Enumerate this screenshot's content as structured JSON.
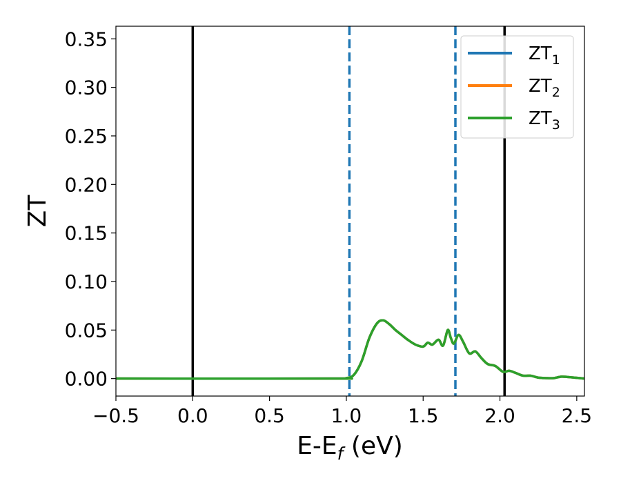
{
  "chart_data": {
    "type": "line",
    "xlabel": {
      "main": "E-E",
      "sub": "f",
      "unit": " (eV)"
    },
    "ylabel": "ZT",
    "xlim": [
      -0.5,
      2.55
    ],
    "ylim": [
      -0.018,
      0.363
    ],
    "x_ticks": [
      -0.5,
      0.0,
      0.5,
      1.0,
      1.5,
      2.0,
      2.5
    ],
    "x_tick_labels": [
      "−0.5",
      "0.0",
      "0.5",
      "1.0",
      "1.5",
      "2.0",
      "2.5"
    ],
    "y_ticks": [
      0.0,
      0.05,
      0.1,
      0.15,
      0.2,
      0.25,
      0.3,
      0.35
    ],
    "y_tick_labels": [
      "0.00",
      "0.05",
      "0.10",
      "0.15",
      "0.20",
      "0.25",
      "0.30",
      "0.35"
    ],
    "grid": false,
    "legend_position": "top-right",
    "vertical_lines": [
      {
        "x": 0.0,
        "color": "#000000",
        "style": "solid"
      },
      {
        "x": 2.03,
        "color": "#000000",
        "style": "solid"
      },
      {
        "x": 1.02,
        "color": "#1f77b4",
        "style": "dashed"
      },
      {
        "x": 1.71,
        "color": "#1f77b4",
        "style": "dashed"
      }
    ],
    "series": [
      {
        "name": "ZT",
        "name_sub": "1",
        "color": "#1f77b4",
        "x": [
          -0.5,
          0.9,
          1.0,
          1.05,
          1.1,
          1.15,
          1.2,
          1.24,
          1.28,
          1.32,
          1.36,
          1.4,
          1.45,
          1.5,
          1.53,
          1.56,
          1.6,
          1.63,
          1.66,
          1.68,
          1.7,
          1.73,
          1.76,
          1.8,
          1.84,
          1.88,
          1.92,
          1.97,
          2.02,
          2.06,
          2.1,
          2.15,
          2.2,
          2.25,
          2.3,
          2.35,
          2.4,
          2.45,
          2.55
        ],
        "y": [
          0.0,
          0.0,
          0.0005,
          0.004,
          0.018,
          0.042,
          0.057,
          0.06,
          0.056,
          0.05,
          0.045,
          0.04,
          0.035,
          0.033,
          0.037,
          0.035,
          0.04,
          0.034,
          0.05,
          0.042,
          0.036,
          0.045,
          0.038,
          0.026,
          0.028,
          0.021,
          0.015,
          0.013,
          0.007,
          0.008,
          0.006,
          0.003,
          0.003,
          0.001,
          0.0005,
          0.0005,
          0.002,
          0.0015,
          0.0
        ]
      },
      {
        "name": "ZT",
        "name_sub": "2",
        "color": "#ff7f0e",
        "x": [
          -0.5,
          0.9,
          1.0,
          1.05,
          1.1,
          1.15,
          1.2,
          1.24,
          1.28,
          1.32,
          1.36,
          1.4,
          1.45,
          1.5,
          1.53,
          1.56,
          1.6,
          1.63,
          1.66,
          1.68,
          1.7,
          1.73,
          1.76,
          1.8,
          1.84,
          1.88,
          1.92,
          1.97,
          2.02,
          2.06,
          2.1,
          2.15,
          2.2,
          2.25,
          2.3,
          2.35,
          2.4,
          2.45,
          2.55
        ],
        "y": [
          0.0,
          0.0,
          0.0005,
          0.004,
          0.018,
          0.042,
          0.057,
          0.06,
          0.056,
          0.05,
          0.045,
          0.04,
          0.035,
          0.033,
          0.037,
          0.035,
          0.04,
          0.034,
          0.05,
          0.042,
          0.036,
          0.045,
          0.038,
          0.026,
          0.028,
          0.021,
          0.015,
          0.013,
          0.007,
          0.008,
          0.006,
          0.003,
          0.003,
          0.001,
          0.0005,
          0.0005,
          0.002,
          0.0015,
          0.0
        ]
      },
      {
        "name": "ZT",
        "name_sub": "3",
        "color": "#2ca02c",
        "x": [
          -0.5,
          0.9,
          1.0,
          1.05,
          1.1,
          1.15,
          1.2,
          1.24,
          1.28,
          1.32,
          1.36,
          1.4,
          1.45,
          1.5,
          1.53,
          1.56,
          1.6,
          1.63,
          1.66,
          1.68,
          1.7,
          1.73,
          1.76,
          1.8,
          1.84,
          1.88,
          1.92,
          1.97,
          2.02,
          2.06,
          2.1,
          2.15,
          2.2,
          2.25,
          2.3,
          2.35,
          2.4,
          2.45,
          2.55
        ],
        "y": [
          0.0,
          0.0,
          0.0005,
          0.004,
          0.018,
          0.042,
          0.057,
          0.06,
          0.056,
          0.05,
          0.045,
          0.04,
          0.035,
          0.033,
          0.037,
          0.035,
          0.04,
          0.034,
          0.05,
          0.042,
          0.036,
          0.045,
          0.038,
          0.026,
          0.028,
          0.021,
          0.015,
          0.013,
          0.007,
          0.008,
          0.006,
          0.003,
          0.003,
          0.001,
          0.0005,
          0.0005,
          0.002,
          0.0015,
          0.0
        ]
      }
    ]
  }
}
